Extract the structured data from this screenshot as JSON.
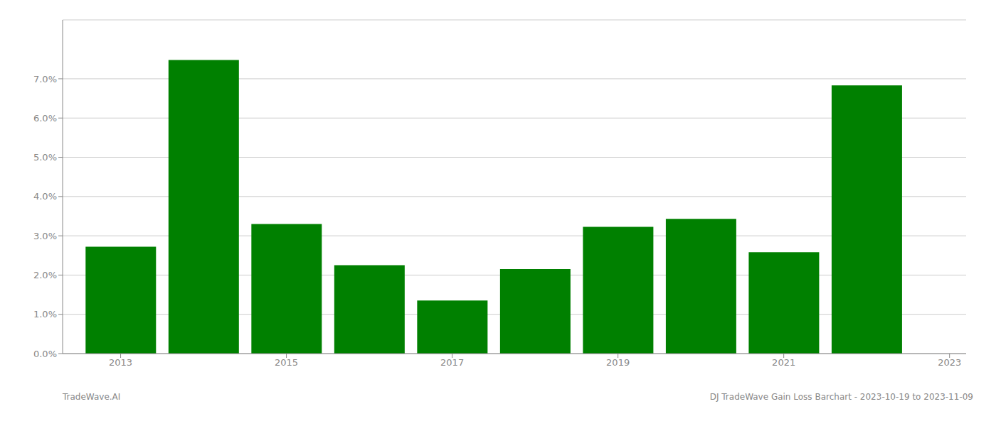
{
  "chart_data": {
    "type": "bar",
    "x": [
      2013,
      2014,
      2015,
      2016,
      2017,
      2018,
      2019,
      2020,
      2021,
      2022
    ],
    "values": [
      0.0272,
      0.0748,
      0.033,
      0.0225,
      0.0135,
      0.0215,
      0.0323,
      0.0343,
      0.0258,
      0.0683
    ],
    "color": "#008000",
    "xlim": [
      2012.3,
      2023.2
    ],
    "xticks": [
      2013,
      2015,
      2017,
      2019,
      2021,
      2023
    ],
    "ylim": [
      0,
      0.085
    ],
    "yticks": [
      {
        "value": 0.0,
        "label": "0.0%"
      },
      {
        "value": 0.01,
        "label": "1.0%"
      },
      {
        "value": 0.02,
        "label": "2.0%"
      },
      {
        "value": 0.03,
        "label": "3.0%"
      },
      {
        "value": 0.04,
        "label": "4.0%"
      },
      {
        "value": 0.05,
        "label": "5.0%"
      },
      {
        "value": 0.06,
        "label": "6.0%"
      },
      {
        "value": 0.07,
        "label": "7.0%"
      }
    ],
    "grid": true,
    "annotations": [
      "TradeWave.AI",
      "DJ TradeWave Gain Loss Barchart - 2023-10-19 to 2023-11-09"
    ]
  }
}
